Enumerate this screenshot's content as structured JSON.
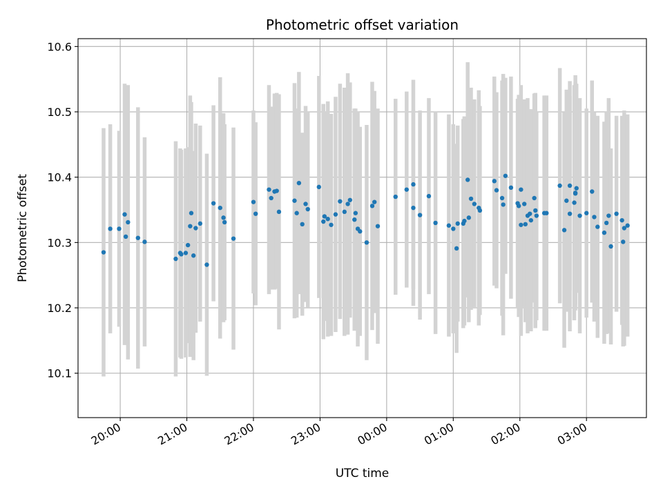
{
  "chart_data": {
    "type": "scatter",
    "title": "Photometric offset variation",
    "xlabel": "UTC time",
    "ylabel": "Photometric offset",
    "grid": true,
    "x_tick_labels": [
      "20:00",
      "21:00",
      "22:00",
      "23:00",
      "00:00",
      "01:00",
      "02:00",
      "03:00"
    ],
    "y_tick_labels": [
      "10.1",
      "10.2",
      "10.3",
      "10.4",
      "10.5",
      "10.6"
    ],
    "xlim": [
      "19:22",
      "03:54"
    ],
    "ylim": [
      10.032,
      10.612
    ],
    "colors": {
      "points": "#1f77b4",
      "errorbars": "#d3d3d3",
      "grid": "#b0b0b0"
    },
    "x": [
      "19:45",
      "19:51",
      "19:59",
      "20:04",
      "20:05",
      "20:07",
      "20:16",
      "20:22",
      "20:50",
      "20:54",
      "20:55",
      "20:59",
      "21:01",
      "21:03",
      "21:04",
      "21:06",
      "21:08",
      "21:12",
      "21:18",
      "21:24",
      "21:30",
      "21:33",
      "21:34",
      "21:42",
      "22:00",
      "22:02",
      "22:14",
      "22:16",
      "22:19",
      "22:21",
      "22:23",
      "22:37",
      "22:39",
      "22:41",
      "22:44",
      "22:47",
      "22:49",
      "22:59",
      "23:03",
      "23:04",
      "23:07",
      "23:10",
      "23:14",
      "23:18",
      "23:22",
      "23:25",
      "23:27",
      "23:31",
      "23:32",
      "23:34",
      "23:36",
      "23:42",
      "23:47",
      "23:49",
      "23:52",
      "24:08",
      "24:18",
      "24:24",
      "24:24",
      "24:30",
      "24:38",
      "24:44",
      "24:56",
      "25:00",
      "25:03",
      "25:04",
      "25:09",
      "25:10",
      "25:13",
      "25:14",
      "25:16",
      "25:19",
      "25:23",
      "25:24",
      "25:37",
      "25:39",
      "25:44",
      "25:45",
      "25:47",
      "25:52",
      "25:58",
      "25:59",
      "26:01",
      "26:01",
      "26:04",
      "26:05",
      "26:07",
      "26:09",
      "26:10",
      "26:13",
      "26:14",
      "26:15",
      "26:22",
      "26:24",
      "26:36",
      "26:40",
      "26:42",
      "26:45",
      "26:45",
      "26:49",
      "26:50",
      "26:50",
      "26:51",
      "26:54",
      "27:00",
      "27:05",
      "27:07",
      "27:10",
      "27:16",
      "27:18",
      "27:20",
      "27:22",
      "27:27",
      "27:32",
      "27:33",
      "27:34",
      "27:37"
    ],
    "y": [
      10.285,
      10.321,
      10.321,
      10.343,
      10.309,
      10.331,
      10.307,
      10.301,
      10.275,
      10.284,
      10.282,
      10.284,
      10.296,
      10.325,
      10.345,
      10.28,
      10.322,
      10.329,
      10.266,
      10.36,
      10.353,
      10.338,
      10.331,
      10.306,
      10.362,
      10.344,
      10.381,
      10.368,
      10.378,
      10.379,
      10.347,
      10.364,
      10.345,
      10.391,
      10.328,
      10.359,
      10.351,
      10.385,
      10.332,
      10.34,
      10.336,
      10.327,
      10.343,
      10.363,
      10.347,
      10.359,
      10.365,
      10.335,
      10.345,
      10.321,
      10.317,
      10.3,
      10.356,
      10.362,
      10.325,
      10.37,
      10.381,
      10.389,
      10.353,
      10.342,
      10.371,
      10.33,
      10.326,
      10.321,
      10.291,
      10.329,
      10.329,
      10.333,
      10.396,
      10.338,
      10.367,
      10.359,
      10.353,
      10.349,
      10.394,
      10.38,
      10.368,
      10.358,
      10.402,
      10.384,
      10.36,
      10.356,
      10.381,
      10.327,
      10.359,
      10.328,
      10.341,
      10.344,
      10.334,
      10.368,
      10.349,
      10.341,
      10.345,
      10.345,
      10.387,
      10.319,
      10.364,
      10.387,
      10.344,
      10.361,
      10.376,
      10.375,
      10.383,
      10.341,
      10.345,
      10.378,
      10.339,
      10.324,
      10.315,
      10.33,
      10.341,
      10.294,
      10.344,
      10.334,
      10.301,
      10.322,
      10.326
    ],
    "yerr": [
      0.19,
      0.16,
      0.15,
      0.2,
      0.15,
      0.21,
      0.2,
      0.16,
      0.18,
      0.16,
      0.16,
      0.16,
      0.15,
      0.2,
      0.17,
      0.16,
      0.16,
      0.15,
      0.17,
      0.15,
      0.2,
      0.16,
      0.15,
      0.17,
      0.14,
      0.14,
      0.16,
      0.14,
      0.15,
      0.15,
      0.18,
      0.18,
      0.16,
      0.17,
      0.14,
      0.15,
      0.15,
      0.17,
      0.18,
      0.16,
      0.18,
      0.17,
      0.18,
      0.18,
      0.19,
      0.2,
      0.18,
      0.17,
      0.16,
      0.18,
      0.16,
      0.18,
      0.19,
      0.17,
      0.18,
      0.15,
      0.15,
      0.16,
      0.15,
      0.16,
      0.15,
      0.17,
      0.17,
      0.16,
      0.16,
      0.15,
      0.16,
      0.16,
      0.18,
      0.16,
      0.17,
      0.16,
      0.18,
      0.16,
      0.16,
      0.15,
      0.18,
      0.2,
      0.15,
      0.17,
      0.16,
      0.17,
      0.16,
      0.17,
      0.16,
      0.15,
      0.18,
      0.16,
      0.17,
      0.16,
      0.18,
      0.16,
      0.18,
      0.18,
      0.18,
      0.18,
      0.17,
      0.16,
      0.18,
      0.18,
      0.18,
      0.17,
      0.16,
      0.18,
      0.16,
      0.17,
      0.16,
      0.17,
      0.17,
      0.17,
      0.18,
      0.15,
      0.15,
      0.16,
      0.16,
      0.18,
      0.17
    ]
  }
}
